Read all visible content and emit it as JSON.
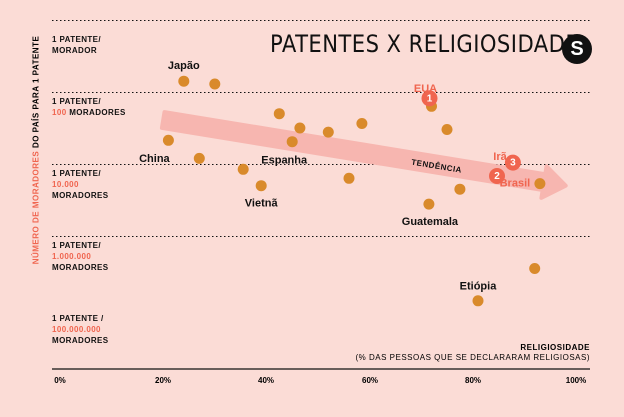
{
  "chart_data": {
    "type": "scatter",
    "title": "PATENTES X RELIGIOSIDADE",
    "ylabel": {
      "part1": "NÚMERO DE MORADORES ",
      "part2": "DO PAÍS PARA 1 PATENTE"
    },
    "xlabel": "RELIGIOSIDADE",
    "xlabel_sub": "(% DAS PESSOAS QUE SE DECLARARAM RELIGIOSAS)",
    "xlim": [
      0,
      100
    ],
    "x_ticks": [
      "0%",
      "20%",
      "40%",
      "60%",
      "80%",
      "100%"
    ],
    "y_scale": "log10 moradores por patente (inverted)",
    "ylim": [
      1,
      100000000
    ],
    "y_ticks": [
      {
        "line1": "1 PATENTE/",
        "highlight": "",
        "line2": "MORADOR"
      },
      {
        "line1": "1 PATENTE/",
        "highlight": "100",
        "line2": "MORADORES"
      },
      {
        "line1": "1 PATENTE/",
        "highlight": "10.000",
        "line2": "MORADORES"
      },
      {
        "line1": "1 PATENTE/",
        "highlight": "1.000.000",
        "line2": "MORADORES"
      },
      {
        "line1": "1 PATENTE /",
        "highlight": "100.000.000",
        "line2": "MORADORES"
      }
    ],
    "points": [
      {
        "x": 24,
        "y": 50,
        "label": "Japão"
      },
      {
        "x": 30,
        "y": 60,
        "label": ""
      },
      {
        "x": 42.5,
        "y": 400,
        "label": ""
      },
      {
        "x": 46.5,
        "y": 1000,
        "label": ""
      },
      {
        "x": 52,
        "y": 1300,
        "label": ""
      },
      {
        "x": 58.5,
        "y": 750,
        "label": ""
      },
      {
        "x": 72,
        "y": 250,
        "label": "EUA",
        "rank": "1"
      },
      {
        "x": 75,
        "y": 1100,
        "label": ""
      },
      {
        "x": 21,
        "y": 2200,
        "label": "China"
      },
      {
        "x": 27,
        "y": 7000,
        "label": ""
      },
      {
        "x": 45,
        "y": 2400,
        "label": "Espanha"
      },
      {
        "x": 35.5,
        "y": 14000,
        "label": ""
      },
      {
        "x": 39,
        "y": 40000,
        "label": "Vietnã"
      },
      {
        "x": 56,
        "y": 25000,
        "label": ""
      },
      {
        "x": 71.5,
        "y": 130000,
        "label": "Guatemala"
      },
      {
        "x": 77.5,
        "y": 50000,
        "label": ""
      },
      {
        "x": 93,
        "y": 35000,
        "label": "Brasil",
        "rank": "3"
      },
      {
        "x": 92,
        "y": 8000000,
        "label": ""
      },
      {
        "x": 81,
        "y": 63000000,
        "label": "Etiópia"
      }
    ],
    "ranked_labels": [
      {
        "rank": "2",
        "label": "Irã"
      }
    ],
    "trend": {
      "label": "TENDÊNCIA",
      "from": {
        "x": 20,
        "y": 600
      },
      "to": {
        "x": 98,
        "y": 40000
      }
    }
  },
  "brand": {
    "logo_letter": "S"
  },
  "colors": {
    "background": "#fbdcd6",
    "dot": "#d98a2b",
    "accent": "#f0654f",
    "trend": "#f7b6b0",
    "text": "#111111"
  }
}
